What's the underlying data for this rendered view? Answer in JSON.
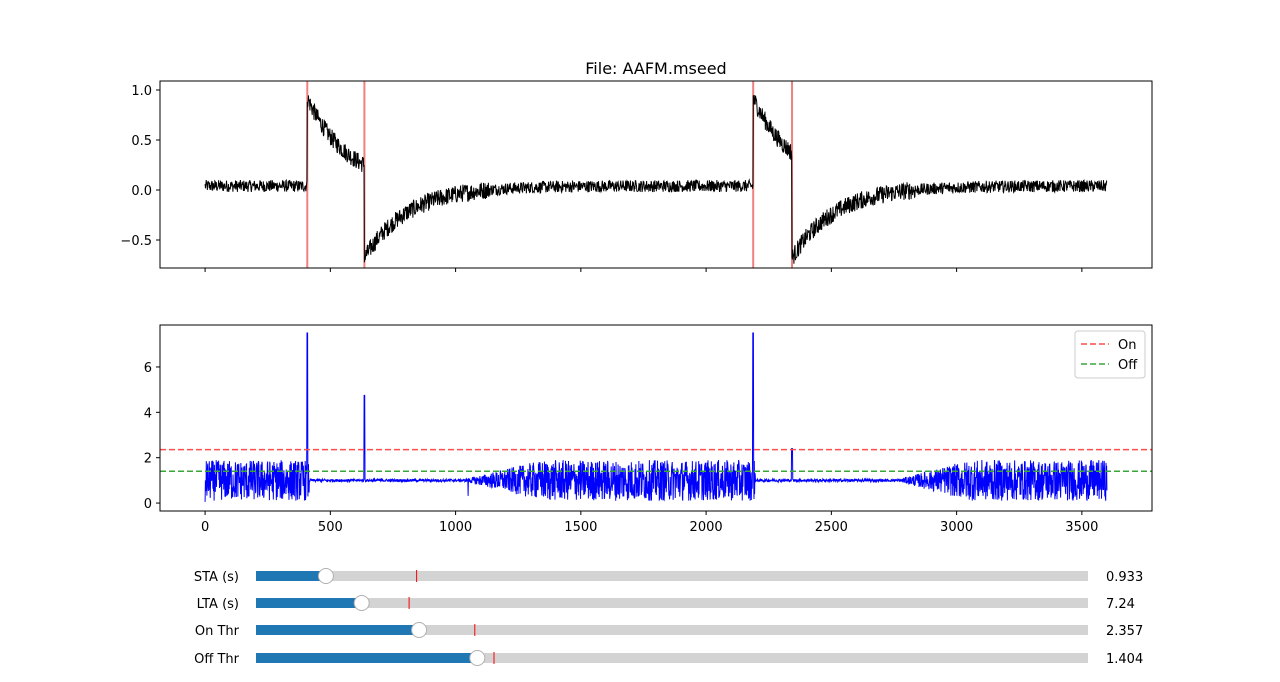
{
  "chart_data": [
    {
      "type": "line",
      "title": "File: AAFM.mseed",
      "xlim": [
        -180,
        3780
      ],
      "ylim": [
        -0.78,
        1.09
      ],
      "x_ticks": [
        0,
        500,
        1000,
        1500,
        2000,
        2500,
        3000,
        3500
      ],
      "x_tick_labels_visible": false,
      "y_ticks": [
        -0.5,
        0.0,
        0.5,
        1.0
      ],
      "y_tick_labels": [
        "−0.5",
        "0.0",
        "0.5",
        "1.0"
      ],
      "series": [
        {
          "color": "#000000",
          "duration": 3600,
          "baseline": 0.04,
          "noise": 0.06
        }
      ],
      "trigger_lines": [
        408,
        636,
        2188,
        2343
      ],
      "trigger_color": "#f08080"
    },
    {
      "type": "line",
      "xlim": [
        -180,
        3780
      ],
      "ylim": [
        -0.35,
        7.85
      ],
      "x_ticks": [
        0,
        500,
        1000,
        1500,
        2000,
        2500,
        3000,
        3500
      ],
      "x_tick_labels": [
        "0",
        "500",
        "1000",
        "1500",
        "2000",
        "2500",
        "3000",
        "3500"
      ],
      "y_ticks": [
        0,
        2,
        4,
        6
      ],
      "y_tick_labels": [
        "0",
        "2",
        "4",
        "6"
      ],
      "series": [
        {
          "color": "#0000ff",
          "duration": 3600,
          "peaks": [
            [
              408,
              7.5
            ],
            [
              636,
              4.75
            ],
            [
              2188,
              7.5
            ],
            [
              2343,
              2.4
            ]
          ]
        }
      ],
      "thresholds": [
        {
          "name": "On",
          "value": 2.357,
          "color": "#ff4d4d"
        },
        {
          "name": "Off",
          "value": 1.404,
          "color": "#3aa63a"
        }
      ],
      "legend": "top-right"
    }
  ],
  "sliders": [
    {
      "label": "STA (s)",
      "value_text": "0.933",
      "fill": 0.084,
      "marker": 0.193
    },
    {
      "label": "LTA (s)",
      "value_text": "7.24",
      "fill": 0.127,
      "marker": 0.184
    },
    {
      "label": "On Thr",
      "value_text": "2.357",
      "fill": 0.196,
      "marker": 0.263
    },
    {
      "label": "Off Thr",
      "value_text": "1.404",
      "fill": 0.266,
      "marker": 0.286
    }
  ],
  "colors": {
    "slider_fill": "#1f77b4",
    "slider_track": "#d3d3d3",
    "slider_marker": "#ff0000"
  }
}
